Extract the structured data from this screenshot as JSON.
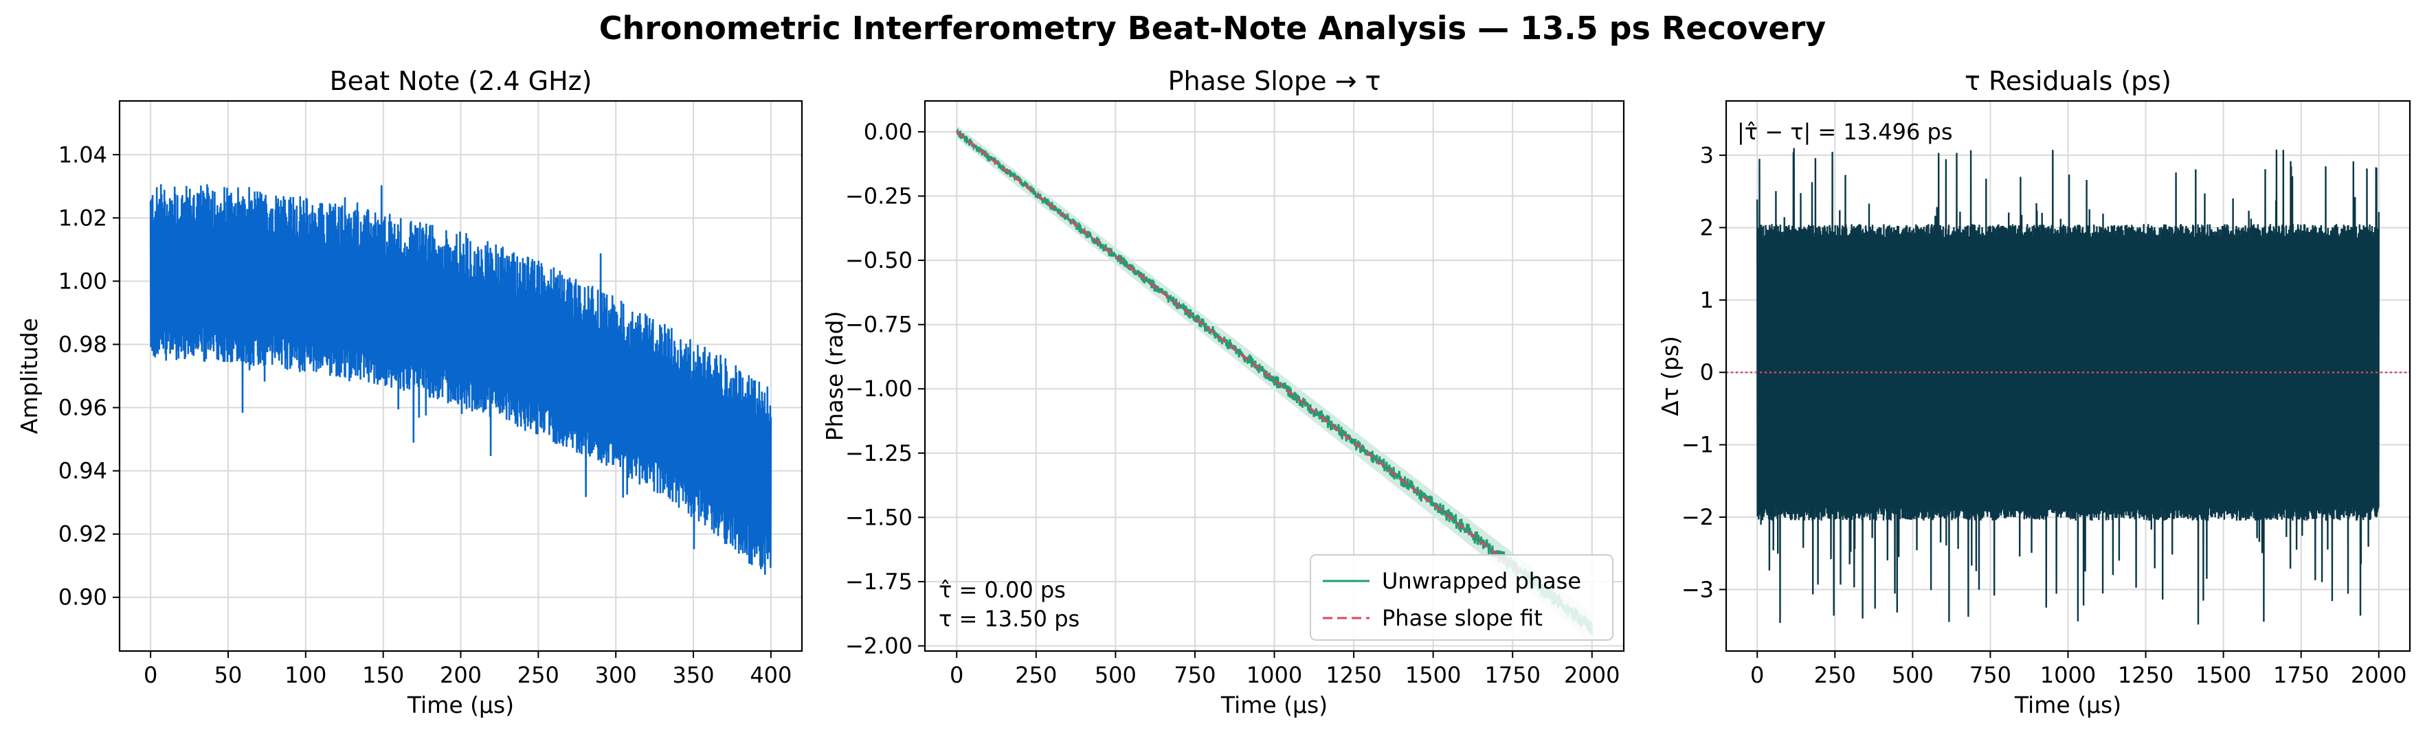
{
  "figure": {
    "suptitle": "Chronometric Interferometry Beat-Note Analysis — 13.5 ps Recovery"
  },
  "colors": {
    "beat": "#0866cc",
    "phase": "#1f9e74",
    "fit": "#e0445e",
    "residual": "#0a3747",
    "zero_line": "#e0445e",
    "grid": "#d9d9d9"
  },
  "chart_data": [
    {
      "type": "line",
      "title": "Beat Note (2.4 GHz)",
      "xlabel": "Time (µs)",
      "ylabel": "Amplitude",
      "xlim": [
        -20,
        420
      ],
      "ylim": [
        0.883,
        1.057
      ],
      "xticks": [
        0,
        50,
        100,
        150,
        200,
        250,
        300,
        350,
        400
      ],
      "yticks": [
        0.9,
        0.92,
        0.94,
        0.96,
        0.98,
        1.0,
        1.02,
        1.04
      ],
      "ytick_format": 2,
      "grid": true,
      "series": [
        {
          "x": [
            0,
            50,
            100,
            150,
            200,
            250,
            300,
            350,
            400
          ],
          "center": [
            1.0,
            0.999,
            0.995,
            0.99,
            0.984,
            0.975,
            0.963,
            0.95,
            0.935
          ],
          "upper": [
            1.03,
            1.031,
            1.027,
            1.022,
            1.016,
            1.007,
            0.995,
            0.982,
            0.967
          ],
          "lower": [
            0.975,
            0.974,
            0.971,
            0.967,
            0.96,
            0.951,
            0.94,
            0.925,
            0.905
          ],
          "color": "#0866cc"
        }
      ]
    },
    {
      "type": "line",
      "title": "Phase Slope → τ",
      "xlabel": "Time (µs)",
      "ylabel": "Phase (rad)",
      "xlim": [
        -100,
        2100
      ],
      "ylim": [
        -2.02,
        0.12
      ],
      "xticks": [
        0,
        250,
        500,
        750,
        1000,
        1250,
        1500,
        1750,
        2000
      ],
      "yticks": [
        -2.0,
        -1.75,
        -1.5,
        -1.25,
        -1.0,
        -0.75,
        -0.5,
        -0.25,
        0.0
      ],
      "ytick_format": 2,
      "grid": true,
      "legend_position": "lower-right",
      "series": [
        {
          "name": "Unwrapped phase",
          "x": [
            0,
            2000
          ],
          "y": [
            0.0,
            -1.93
          ],
          "color": "#1f9e74",
          "style": "solid"
        },
        {
          "name": "Phase slope fit",
          "x": [
            0,
            1780
          ],
          "y": [
            0.0,
            -1.72
          ],
          "color": "#e0445e",
          "style": "dashed"
        }
      ],
      "annotation": [
        "τ̂ = 0.00 ps",
        "τ = 13.50 ps"
      ]
    },
    {
      "type": "line",
      "title": "τ Residuals (ps)",
      "xlabel": "Time (µs)",
      "ylabel": "Δτ (ps)",
      "xlim": [
        -100,
        2100
      ],
      "ylim": [
        -3.85,
        3.75
      ],
      "xticks": [
        0,
        250,
        500,
        750,
        1000,
        1250,
        1500,
        1750,
        2000
      ],
      "yticks": [
        -3,
        -2,
        -1,
        0,
        1,
        2,
        3
      ],
      "ytick_format": 0,
      "grid": true,
      "series": [
        {
          "x": [
            0,
            2000
          ],
          "band": [
            -2.0,
            2.0
          ],
          "spikes_max": 3.1,
          "spikes_min": -3.5,
          "color": "#0a3747"
        }
      ],
      "zero_line": 0,
      "annotation": "|τ̂ − τ| = 13.496 ps"
    }
  ]
}
